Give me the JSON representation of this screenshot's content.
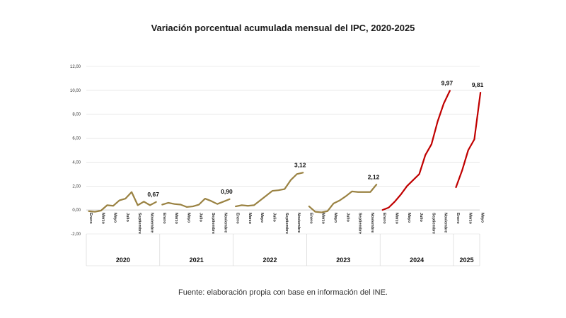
{
  "chart_data": {
    "type": "line",
    "title": "Variación porcentual acumulada mensual del IPC, 2020-2025",
    "source": "Fuente: elaboración propia con base en información del INE.",
    "ylim": [
      -2,
      12
    ],
    "yticks": [
      "-2,00",
      "0,00",
      "2,00",
      "4,00",
      "6,00",
      "8,00",
      "10,00",
      "12,00"
    ],
    "grid": true,
    "x_tick_labels": [
      "Enero",
      "Marzo",
      "Mayo",
      "Julio",
      "Septiembre",
      "Noviembre"
    ],
    "colors": {
      "gold": "#9A8242",
      "red": "#C00000"
    },
    "series": [
      {
        "year": "2020",
        "color": "#9A8242",
        "values": [
          -0.1,
          -0.15,
          -0.05,
          0.4,
          0.35,
          0.8,
          0.95,
          1.5,
          0.4,
          0.7,
          0.4,
          0.67
        ],
        "end_label": "0,67"
      },
      {
        "year": "2021",
        "color": "#9A8242",
        "values": [
          0.45,
          0.6,
          0.5,
          0.45,
          0.25,
          0.3,
          0.45,
          0.95,
          0.75,
          0.5,
          0.7,
          0.9
        ],
        "end_label": "0,90"
      },
      {
        "year": "2022",
        "color": "#9A8242",
        "values": [
          0.3,
          0.4,
          0.35,
          0.4,
          0.8,
          1.2,
          1.6,
          1.65,
          1.75,
          2.5,
          3.0,
          3.12
        ],
        "end_label": "3,12"
      },
      {
        "year": "2023",
        "color": "#9A8242",
        "values": [
          0.3,
          -0.15,
          -0.2,
          -0.1,
          0.55,
          0.8,
          1.15,
          1.55,
          1.5,
          1.5,
          1.5,
          2.12
        ],
        "end_label": "2,12"
      },
      {
        "year": "2024",
        "color": "#C00000",
        "values": [
          0.0,
          0.2,
          0.7,
          1.3,
          2.0,
          2.5,
          3.0,
          4.6,
          5.5,
          7.4,
          8.9,
          9.97
        ],
        "end_label": "9,97"
      },
      {
        "year": "2025",
        "color": "#C00000",
        "values": [
          1.9,
          3.3,
          5.0,
          5.9,
          9.81
        ],
        "end_label": "9,81"
      }
    ]
  }
}
